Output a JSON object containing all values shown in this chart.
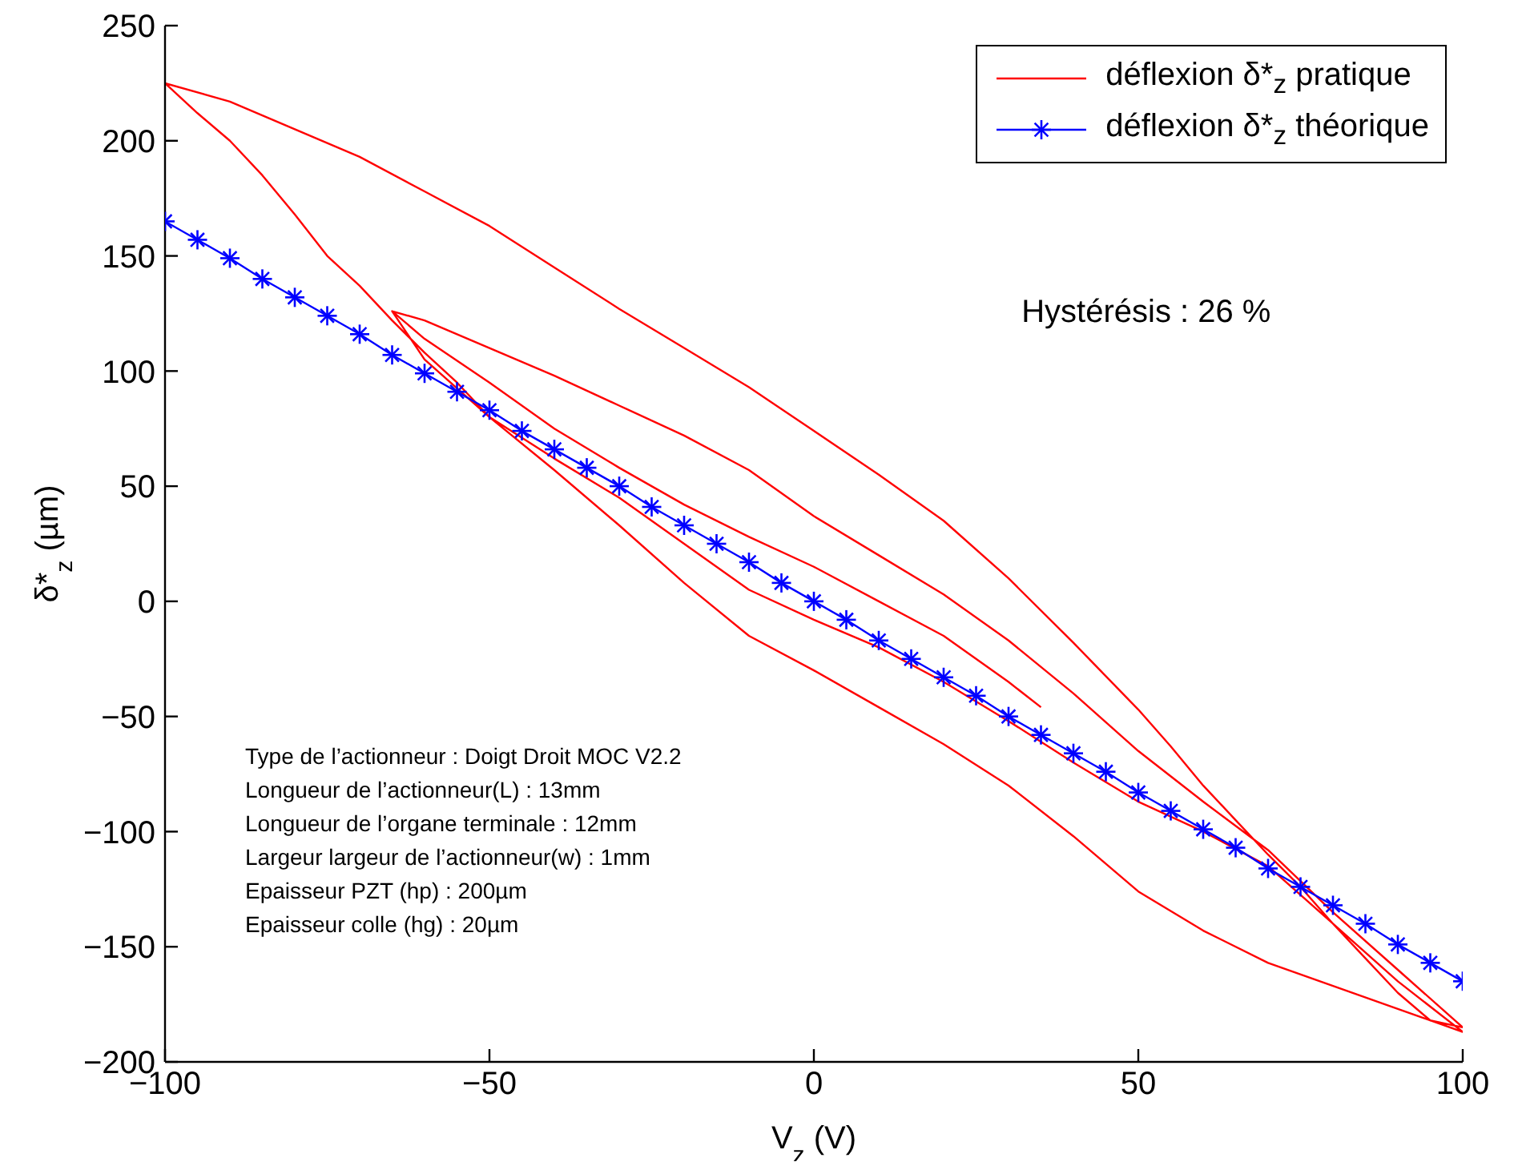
{
  "chart_data": {
    "type": "line",
    "xlabel": "V$_{z}$ (V)",
    "ylabel": "δ*$_{z}$ (µm)",
    "xlim": [
      -100,
      100
    ],
    "xticks": [
      {
        "value": -100,
        "label": "−100"
      },
      {
        "value": -50,
        "label": "−50"
      },
      0,
      50,
      100
    ],
    "ylim": [
      -200,
      250
    ],
    "yticks": [
      {
        "value": -200,
        "label": "−200"
      },
      {
        "value": -150,
        "label": "−150"
      },
      {
        "value": -100,
        "label": "−100"
      },
      {
        "value": -50,
        "label": "−50"
      },
      0,
      50,
      100,
      150,
      200,
      250
    ],
    "legend": "top right",
    "line_style": "solid",
    "annotations": [
      "Hystérésis : 26 %",
      "Type de l’actionneur : Doigt Droit MOC V2.2",
      "Longueur de l’actionneur(L) : 13mm",
      "Longueur de l’organe terminale : 12mm",
      "Largeur largeur de l’actionneur(w) : 1mm",
      "Epaisseur PZT (hp) : 200µm",
      "Epaisseur colle (hg) : 20µm"
    ],
    "series": [
      {
        "name": "déflexion δ*$_{z}$ pratique",
        "color": "#ff0000",
        "marker": "none",
        "x": [
          -65,
          -60,
          -50,
          -40,
          -30,
          -20,
          -10,
          0,
          10,
          20,
          30,
          40,
          50,
          60,
          70,
          80,
          90,
          100,
          95,
          90,
          85,
          80,
          75,
          70,
          65,
          60,
          55,
          50,
          40,
          30,
          20,
          10,
          0,
          -10,
          -20,
          -30,
          -40,
          -50,
          -60,
          -70,
          -80,
          -90,
          -100,
          -95,
          -90,
          -85,
          -80,
          -75,
          -70,
          -65,
          -60,
          -55,
          -50,
          -40,
          -30,
          -20,
          -10,
          0,
          10,
          20,
          30,
          40,
          50,
          60,
          70,
          80,
          90,
          100,
          90,
          80,
          70,
          60,
          50,
          40,
          30,
          20,
          10,
          0,
          -10,
          -20,
          -30,
          -40,
          -50,
          -60,
          -65,
          -60,
          -50,
          -40,
          -30,
          -20,
          -10,
          0,
          10,
          20,
          30,
          35
        ],
        "values": [
          126,
          122,
          110,
          98,
          85,
          72,
          57,
          37,
          20,
          3,
          -17,
          -40,
          -65,
          -87,
          -108,
          -135,
          -160,
          -185,
          -182,
          -170,
          -155,
          -140,
          -124,
          -110,
          -95,
          -80,
          -63,
          -47,
          -18,
          10,
          35,
          55,
          74,
          93,
          110,
          127,
          145,
          163,
          178,
          193,
          205,
          217,
          225,
          212,
          200,
          185,
          168,
          150,
          137,
          122,
          108,
          95,
          80,
          57,
          33,
          8,
          -15,
          -30,
          -46,
          -62,
          -80,
          -102,
          -126,
          -143,
          -157,
          -167,
          -177,
          -187,
          -165,
          -140,
          -115,
          -100,
          -87,
          -70,
          -52,
          -35,
          -20,
          -8,
          5,
          25,
          45,
          62,
          80,
          105,
          126,
          114,
          95,
          75,
          58,
          42,
          28,
          15,
          0,
          -15,
          -35,
          -46
        ]
      },
      {
        "name": "déflexion δ*$_{z}$ théorique",
        "color": "#0000ff",
        "marker": "cross",
        "x": [
          -100,
          -95,
          -90,
          -85,
          -80,
          -75,
          -70,
          -65,
          -60,
          -55,
          -50,
          -45,
          -40,
          -35,
          -30,
          -25,
          -20,
          -15,
          -10,
          -5,
          0,
          5,
          10,
          15,
          20,
          25,
          30,
          35,
          40,
          45,
          50,
          55,
          60,
          65,
          70,
          75,
          80,
          85,
          90,
          95,
          100
        ],
        "values": [
          165,
          157,
          149,
          140,
          132,
          124,
          116,
          107,
          99,
          91,
          83,
          74,
          66,
          58,
          50,
          41,
          33,
          25,
          17,
          8,
          0,
          -8,
          -17,
          -25,
          -33,
          -41,
          -50,
          -58,
          -66,
          -74,
          -83,
          -91,
          -99,
          -107,
          -116,
          -124,
          -132,
          -140,
          -149,
          -157,
          -165
        ]
      }
    ]
  }
}
